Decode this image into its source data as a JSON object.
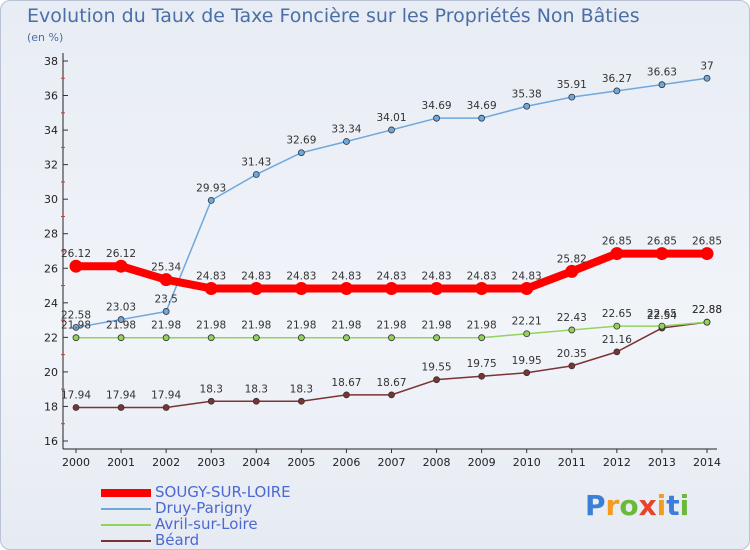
{
  "title": "Evolution du Taux de Taxe Foncière sur les Propriétés Non Bâties",
  "unit_label": "(en %)",
  "logo_text": "Proxiti",
  "chart_data": {
    "type": "line",
    "title": "Evolution du Taux de Taxe Foncière sur les Propriétés Non Bâties",
    "ylabel": "(en %)",
    "xlabel": "",
    "x": [
      2000,
      2001,
      2002,
      2003,
      2004,
      2005,
      2006,
      2007,
      2008,
      2009,
      2010,
      2011,
      2012,
      2013,
      2014
    ],
    "ylim": [
      16,
      38
    ],
    "yticks": [
      16,
      18,
      20,
      22,
      24,
      26,
      28,
      30,
      32,
      34,
      36,
      38
    ],
    "grid": false,
    "legend_position": "bottom-left",
    "series": [
      {
        "name": "SOUGY-SUR-LOIRE",
        "color": "#ff0000",
        "values": [
          26.12,
          26.12,
          25.34,
          24.83,
          24.83,
          24.83,
          24.83,
          24.83,
          24.83,
          24.83,
          24.83,
          25.82,
          26.85,
          26.85,
          26.85
        ],
        "labels": [
          "26.12",
          "26.12",
          "25.34",
          "24.83",
          "24.83",
          "24.83",
          "24.83",
          "24.83",
          "24.83",
          "24.83",
          "24.83",
          "25.82",
          "26.85",
          "26.85",
          "26.85"
        ]
      },
      {
        "name": "Druy-Parigny",
        "color": "#6fa8dc",
        "values": [
          22.58,
          23.03,
          23.5,
          29.93,
          31.43,
          32.69,
          33.34,
          34.01,
          34.69,
          34.69,
          35.38,
          35.91,
          36.27,
          36.63,
          37
        ],
        "labels": [
          "22.58",
          "23.03",
          "23.5",
          "29.93",
          "31.43",
          "32.69",
          "33.34",
          "34.01",
          "34.69",
          "34.69",
          "35.38",
          "35.91",
          "36.27",
          "36.63",
          "37"
        ]
      },
      {
        "name": "Avril-sur-Loire",
        "color": "#93d35b",
        "values": [
          21.98,
          21.98,
          21.98,
          21.98,
          21.98,
          21.98,
          21.98,
          21.98,
          21.98,
          21.98,
          22.21,
          22.43,
          22.65,
          22.65,
          22.88
        ],
        "labels": [
          "21.98",
          "21.98",
          "21.98",
          "21.98",
          "21.98",
          "21.98",
          "21.98",
          "21.98",
          "21.98",
          "21.98",
          "22.21",
          "22.43",
          "22.65",
          "22.65",
          "22.88"
        ]
      },
      {
        "name": "Béard",
        "color": "#7a3434",
        "values": [
          17.94,
          17.94,
          17.94,
          18.3,
          18.3,
          18.3,
          18.67,
          18.67,
          19.55,
          19.75,
          19.95,
          20.35,
          21.16,
          22.54,
          22.88
        ],
        "labels": [
          "17.94",
          "17.94",
          "17.94",
          "18.3",
          "18.3",
          "18.3",
          "18.67",
          "18.67",
          "19.55",
          "19.75",
          "19.95",
          "20.35",
          "21.16",
          "22.54",
          "22.88"
        ]
      }
    ]
  }
}
